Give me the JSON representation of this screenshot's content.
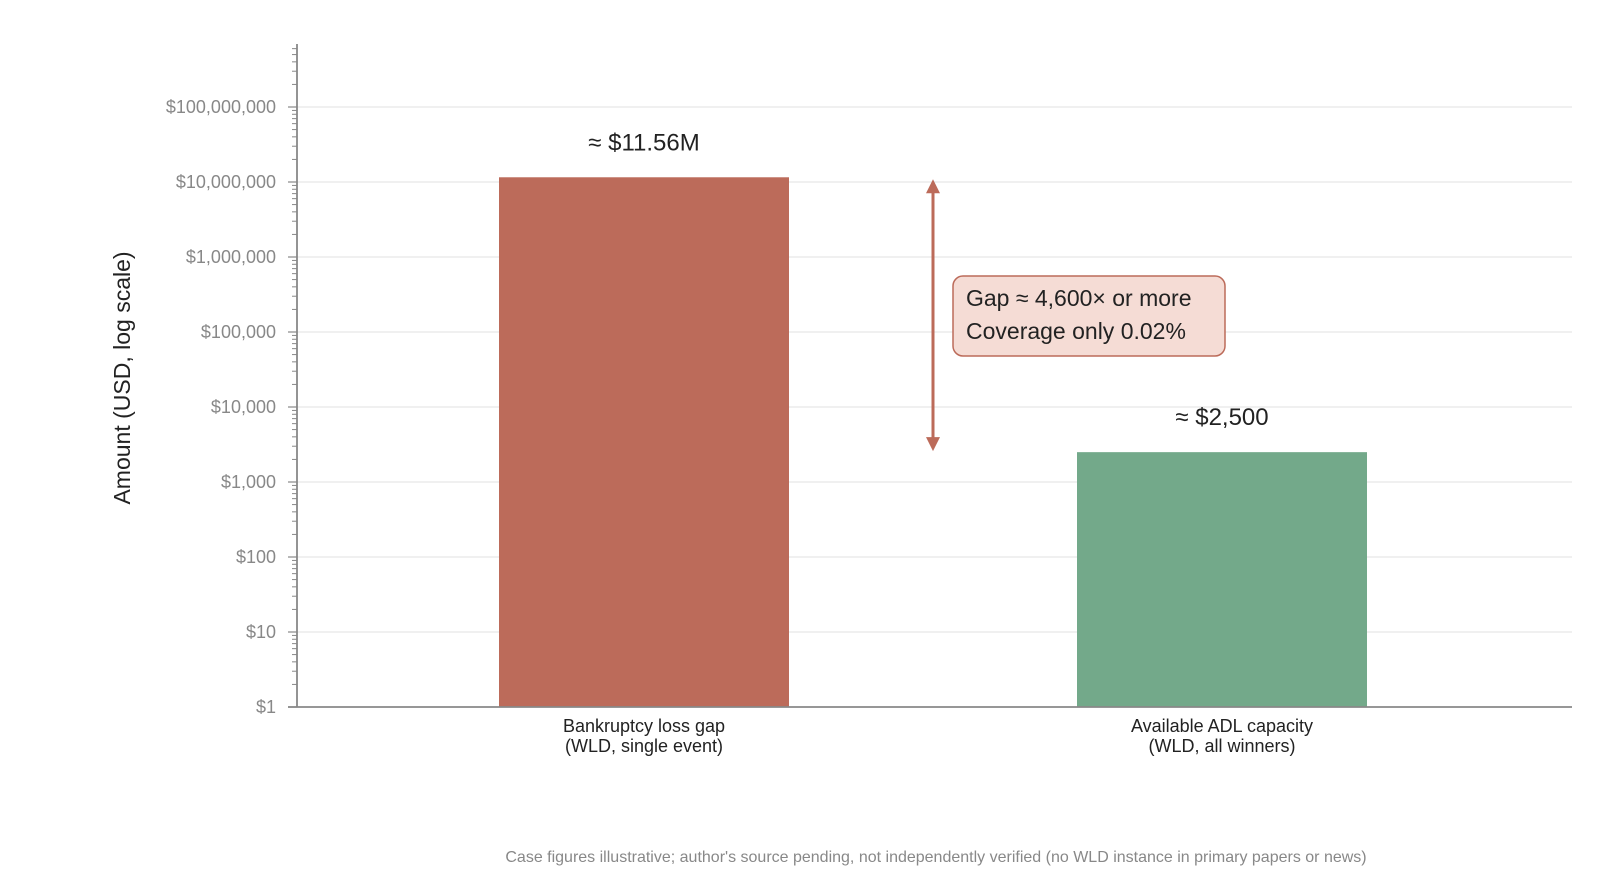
{
  "chart_data": {
    "type": "bar",
    "title": "",
    "xlabel": "",
    "ylabel": "Amount (USD, log scale)",
    "yscale": "log",
    "ylim": [
      1,
      600000000
    ],
    "yticks": [
      {
        "value": 1,
        "label": "$1"
      },
      {
        "value": 10,
        "label": "$10"
      },
      {
        "value": 100,
        "label": "$100"
      },
      {
        "value": 1000,
        "label": "$1,000"
      },
      {
        "value": 10000,
        "label": "$10,000"
      },
      {
        "value": 100000,
        "label": "$100,000"
      },
      {
        "value": 1000000,
        "label": "$1,000,000"
      },
      {
        "value": 10000000,
        "label": "$10,000,000"
      },
      {
        "value": 100000000,
        "label": "$100,000,000"
      }
    ],
    "grid": true,
    "categories": [
      {
        "line1": "Bankruptcy loss gap",
        "line2": "(WLD, single event)"
      },
      {
        "line1": "Available ADL capacity",
        "line2": "(WLD, all winners)"
      }
    ],
    "values": [
      11560000,
      2500
    ],
    "value_labels": [
      "≈ $11.56M",
      "≈ $2,500"
    ],
    "colors": [
      "#bc6b5a",
      "#73a98a"
    ],
    "annotation": {
      "line1": "Gap ≈ 4,600× or more",
      "line2": "Coverage only 0.02%",
      "arrow_from": 11560000,
      "arrow_to": 2500,
      "color": "#bc6b5a",
      "box_fill": "#f5dcd5"
    }
  },
  "footnote": "Case figures illustrative; author's source pending, not independently verified (no WLD instance in primary papers or news)"
}
